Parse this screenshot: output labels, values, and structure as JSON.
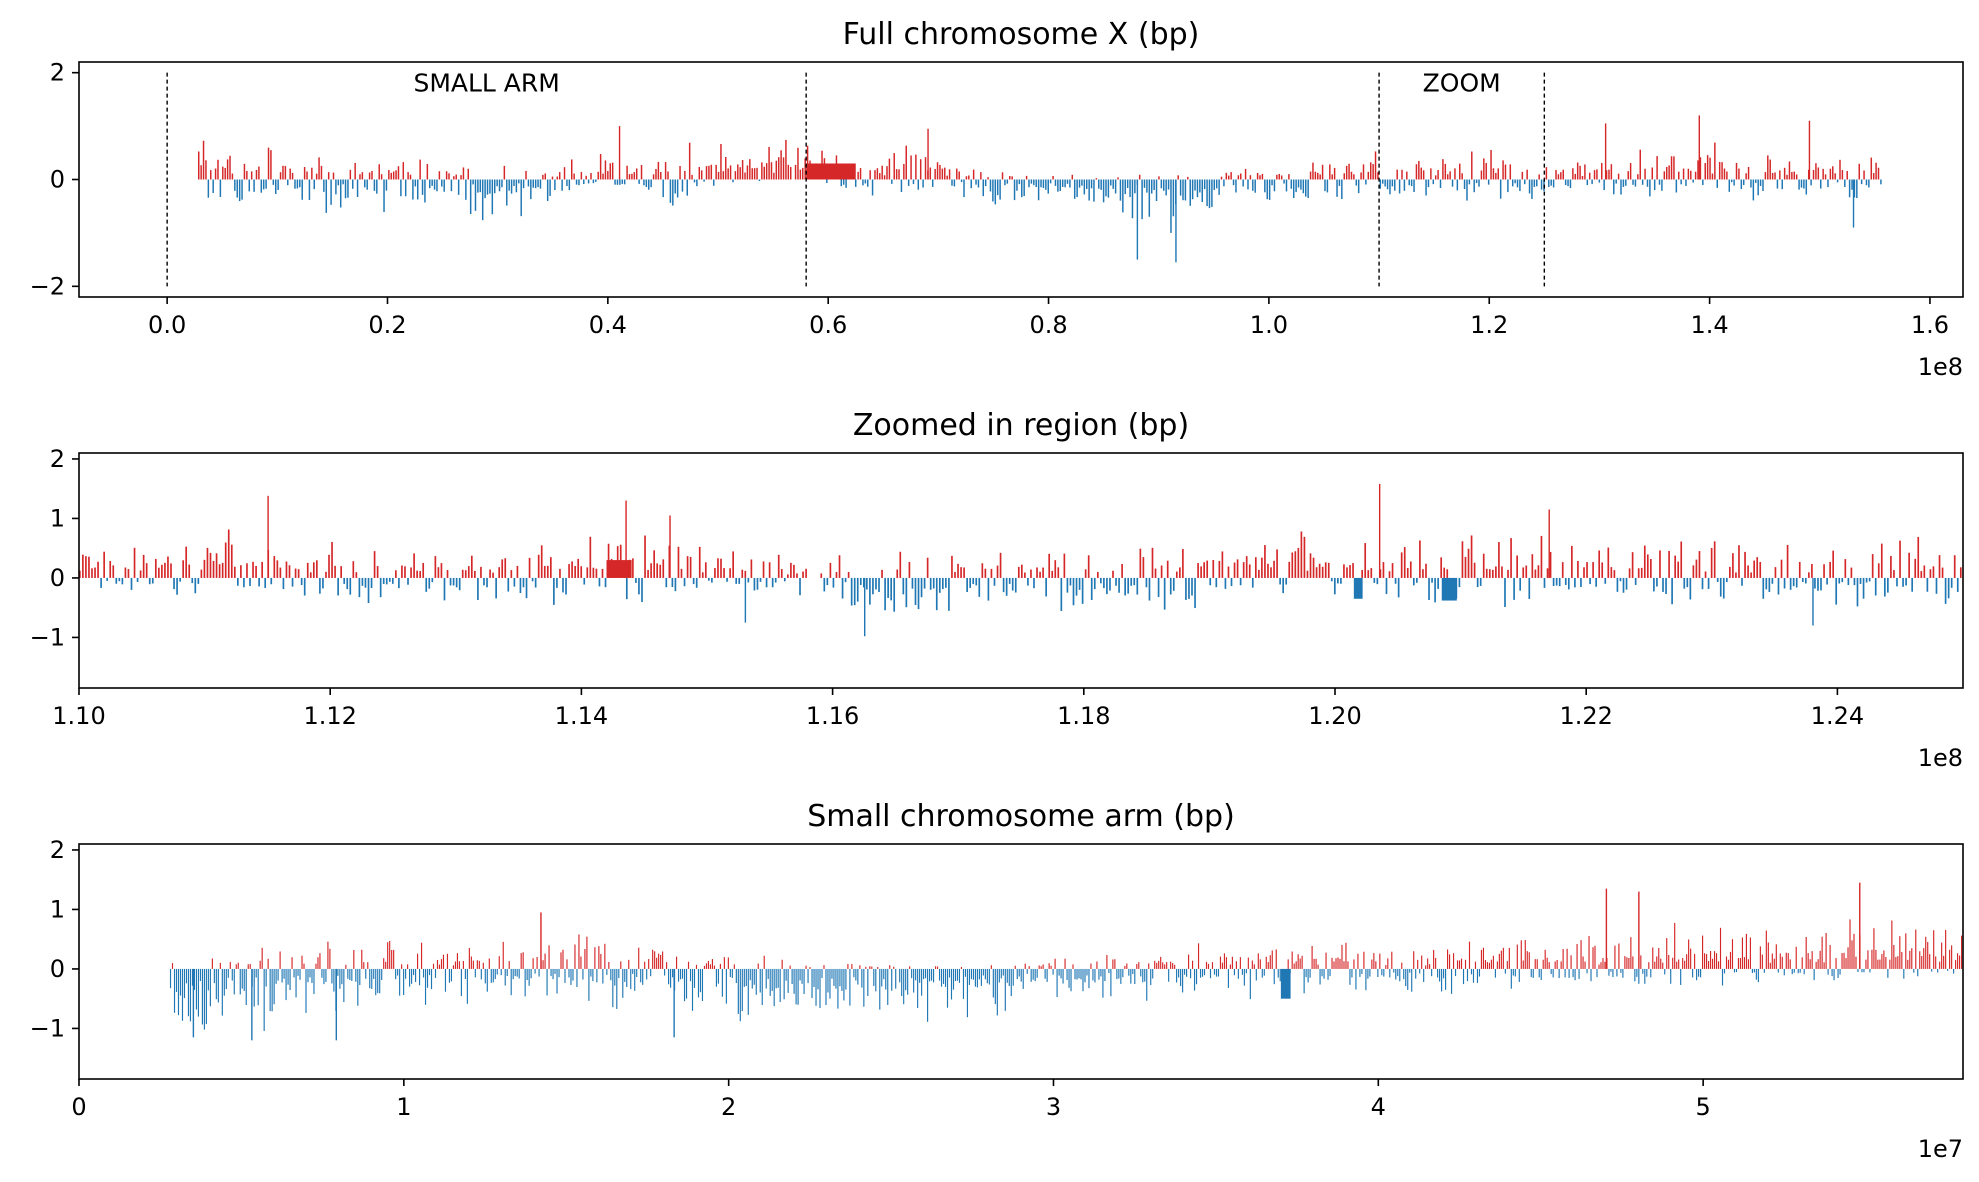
{
  "chart_data": [
    {
      "id": "full",
      "type": "bar",
      "title": "Full chromosome X (bp)",
      "xlabel": "",
      "ylabel": "",
      "xlim": [
        -8000000,
        163000000
      ],
      "ylim": [
        -2.2,
        2.2
      ],
      "xticks": [
        0,
        20000000,
        40000000,
        60000000,
        80000000,
        100000000,
        120000000,
        140000000,
        160000000
      ],
      "xtick_labels": [
        "0.0",
        "0.2",
        "0.4",
        "0.6",
        "0.8",
        "1.0",
        "1.2",
        "1.4",
        "1.6"
      ],
      "yticks": [
        -2,
        0,
        2
      ],
      "ytick_labels": [
        "−2",
        "0",
        "2"
      ],
      "offset_label": "1e8",
      "grid": false,
      "data_range": [
        2800000,
        155700000
      ],
      "series": [
        {
          "values_sign": "positive",
          "color": "#d62728"
        },
        {
          "values_sign": "negative",
          "color": "#1f77b4"
        }
      ],
      "profile": [
        [
          2800000,
          0.45,
          -0.55
        ],
        [
          10000000,
          0.4,
          -0.4
        ],
        [
          20000000,
          0.3,
          -0.45
        ],
        [
          30000000,
          0.2,
          -0.5
        ],
        [
          40000000,
          0.3,
          -0.2
        ],
        [
          46000000,
          0.4,
          -0.35
        ],
        [
          50000000,
          0.55,
          -0.1
        ],
        [
          57900000,
          0.6,
          -0.05
        ],
        [
          62500000,
          0.3,
          -0.3
        ],
        [
          68000000,
          0.45,
          -0.25
        ],
        [
          75000000,
          0.15,
          -0.3
        ],
        [
          85000000,
          0.1,
          -0.45
        ],
        [
          92000000,
          0.12,
          -0.7
        ],
        [
          100000000,
          0.25,
          -0.3
        ],
        [
          110000000,
          0.35,
          -0.35
        ],
        [
          125000000,
          0.35,
          -0.3
        ],
        [
          135000000,
          0.45,
          -0.25
        ],
        [
          150000000,
          0.4,
          -0.3
        ],
        [
          155700000,
          0.45,
          -0.25
        ]
      ],
      "features": [
        {
          "x0": 58000000,
          "x1": 62500000,
          "value": 0.3,
          "color": "#d62728"
        }
      ],
      "peaks": [
        {
          "x": 91500000,
          "value": -1.55
        },
        {
          "x": 88000000,
          "value": -1.5
        },
        {
          "x": 130500000,
          "value": 1.05
        },
        {
          "x": 149000000,
          "value": 1.1
        },
        {
          "x": 139000000,
          "value": 1.2
        },
        {
          "x": 69000000,
          "value": 0.95
        },
        {
          "x": 41000000,
          "value": 1.0
        },
        {
          "x": 153000000,
          "value": -0.9
        }
      ],
      "vlines": [
        0,
        58000000,
        110000000,
        125000000
      ],
      "annotations": [
        {
          "text": "SMALL ARM",
          "x": 29000000,
          "y": 1.65
        },
        {
          "text": "ZOOM",
          "x": 117500000,
          "y": 1.65
        }
      ]
    },
    {
      "id": "zoom",
      "type": "bar",
      "title": "Zoomed in region (bp)",
      "xlabel": "",
      "ylabel": "",
      "xlim": [
        110000000,
        125000000
      ],
      "ylim": [
        -1.85,
        2.1
      ],
      "xticks": [
        110000000,
        112000000,
        114000000,
        116000000,
        118000000,
        120000000,
        122000000,
        124000000
      ],
      "xtick_labels": [
        "1.10",
        "1.12",
        "1.14",
        "1.16",
        "1.18",
        "1.20",
        "1.22",
        "1.24"
      ],
      "yticks": [
        -1,
        0,
        1,
        2
      ],
      "ytick_labels": [
        "−1",
        "0",
        "1",
        "2"
      ],
      "offset_label": "1e8",
      "grid": false,
      "data_range": [
        110000000,
        125000000
      ],
      "series": [
        {
          "values_sign": "positive",
          "color": "#d62728"
        },
        {
          "values_sign": "negative",
          "color": "#1f77b4"
        }
      ],
      "profile": [
        [
          110000000,
          0.5,
          -0.15
        ],
        [
          111500000,
          0.55,
          -0.3
        ],
        [
          113000000,
          0.3,
          -0.35
        ],
        [
          114500000,
          0.6,
          -0.3
        ],
        [
          115700000,
          0.25,
          -0.2
        ],
        [
          116500000,
          0.35,
          -0.5
        ],
        [
          118000000,
          0.3,
          -0.4
        ],
        [
          119500000,
          0.55,
          -0.25
        ],
        [
          121000000,
          0.5,
          -0.35
        ],
        [
          122500000,
          0.4,
          -0.3
        ],
        [
          125000000,
          0.45,
          -0.35
        ]
      ],
      "features": [
        {
          "x0": 114200000,
          "x1": 114400000,
          "value": 0.3,
          "color": "#d62728"
        },
        {
          "x0": 120150000,
          "x1": 120220000,
          "value": -0.35,
          "color": "#1f77b4"
        },
        {
          "x0": 120850000,
          "x1": 120970000,
          "value": -0.38,
          "color": "#1f77b4"
        }
      ],
      "peaks": [
        {
          "x": 111500000,
          "value": 1.38
        },
        {
          "x": 114350000,
          "value": 1.3
        },
        {
          "x": 114700000,
          "value": 1.05
        },
        {
          "x": 120350000,
          "value": 1.58
        },
        {
          "x": 121700000,
          "value": 1.15
        },
        {
          "x": 116250000,
          "value": -0.98
        },
        {
          "x": 115300000,
          "value": -0.75
        },
        {
          "x": 123800000,
          "value": -0.8
        }
      ],
      "gaps": [
        [
          115800000,
          115900000
        ]
      ],
      "vlines": [],
      "annotations": []
    },
    {
      "id": "arm",
      "type": "bar",
      "title": "Small chromosome arm (bp)",
      "xlabel": "",
      "ylabel": "",
      "xlim": [
        0,
        58000000
      ],
      "ylim": [
        -1.85,
        2.1
      ],
      "xticks": [
        0,
        10000000,
        20000000,
        30000000,
        40000000,
        50000000
      ],
      "xtick_labels": [
        "0",
        "1",
        "2",
        "3",
        "4",
        "5"
      ],
      "yticks": [
        -1,
        0,
        1,
        2
      ],
      "ytick_labels": [
        "−1",
        "0",
        "1",
        "2"
      ],
      "offset_label": "1e7",
      "grid": false,
      "data_range": [
        2800000,
        58000000
      ],
      "series": [
        {
          "values_sign": "positive",
          "color": "#d62728"
        },
        {
          "values_sign": "negative",
          "color": "#1f77b4"
        }
      ],
      "profile": [
        [
          2800000,
          0.1,
          -0.9
        ],
        [
          5000000,
          0.2,
          -0.7
        ],
        [
          8000000,
          0.35,
          -0.45
        ],
        [
          12000000,
          0.35,
          -0.5
        ],
        [
          14000000,
          0.5,
          -0.35
        ],
        [
          18000000,
          0.35,
          -0.55
        ],
        [
          22000000,
          0.15,
          -0.6
        ],
        [
          27000000,
          0.05,
          -0.55
        ],
        [
          32000000,
          0.2,
          -0.35
        ],
        [
          37000000,
          0.3,
          -0.3
        ],
        [
          42000000,
          0.3,
          -0.3
        ],
        [
          46500000,
          0.4,
          -0.25
        ],
        [
          50000000,
          0.5,
          -0.2
        ],
        [
          54000000,
          0.55,
          -0.15
        ],
        [
          58000000,
          0.6,
          -0.1
        ]
      ],
      "features": [
        {
          "x0": 37000000,
          "x1": 37300000,
          "value": -0.5,
          "color": "#1f77b4"
        }
      ],
      "peaks": [
        {
          "x": 3500000,
          "value": -1.15
        },
        {
          "x": 5300000,
          "value": -1.2
        },
        {
          "x": 7900000,
          "value": -1.2
        },
        {
          "x": 18300000,
          "value": -1.15
        },
        {
          "x": 47000000,
          "value": 1.35
        },
        {
          "x": 48000000,
          "value": 1.3
        },
        {
          "x": 54800000,
          "value": 1.45
        },
        {
          "x": 14200000,
          "value": 0.95
        }
      ],
      "vlines": [],
      "annotations": []
    }
  ]
}
